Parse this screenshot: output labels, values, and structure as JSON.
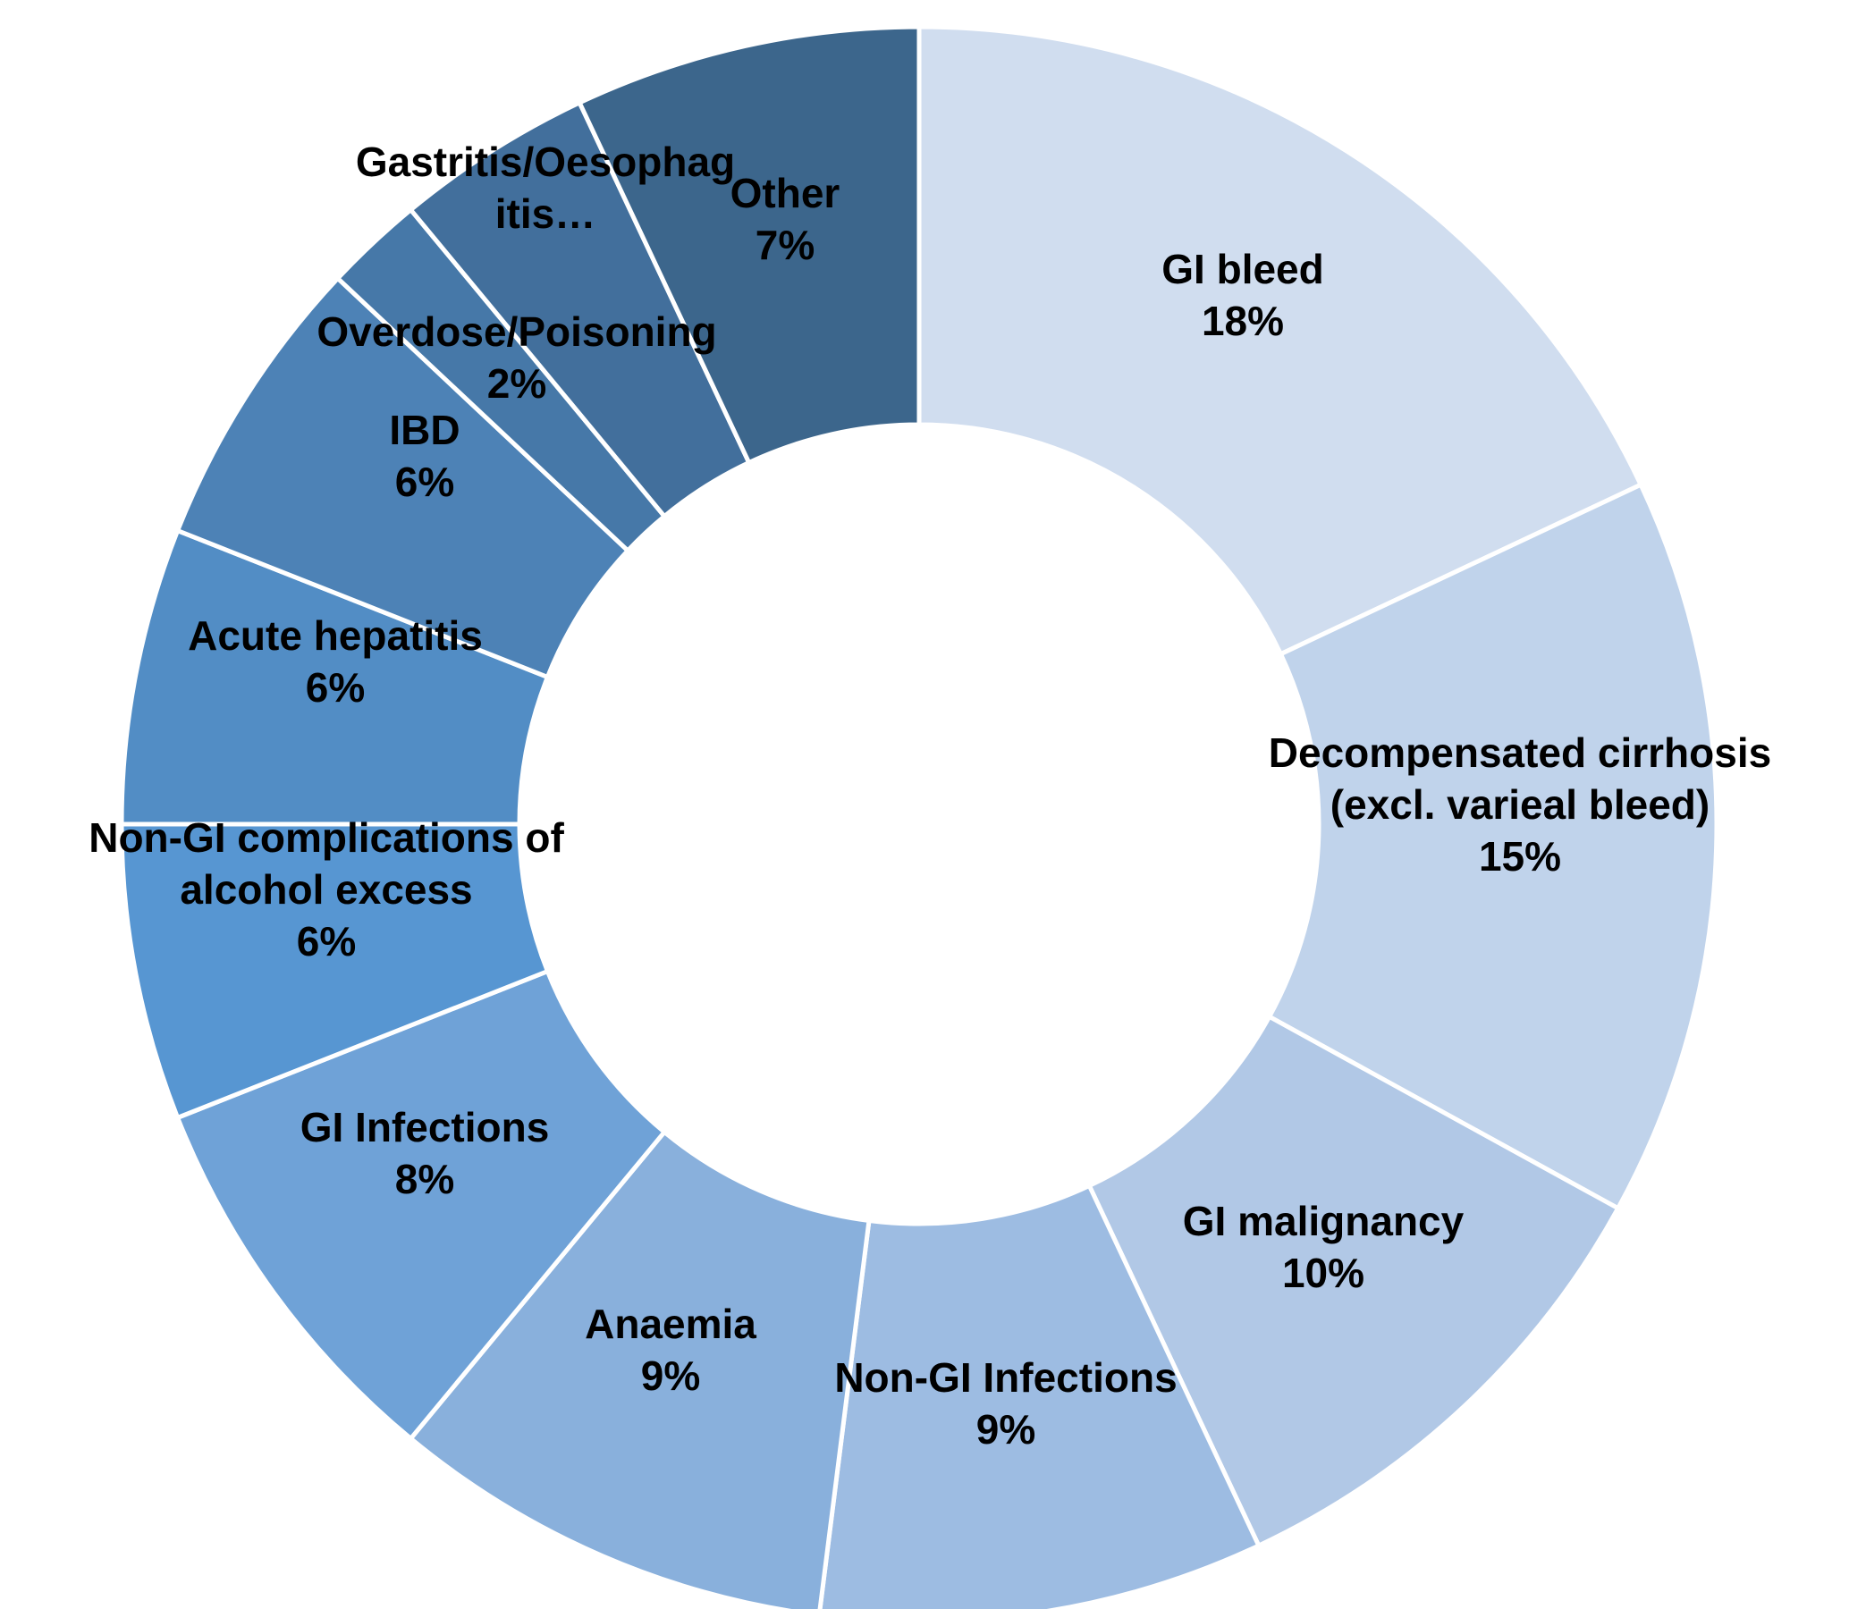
{
  "chart_data": {
    "type": "pie",
    "donut": true,
    "legend": "none",
    "slices": [
      {
        "label_lines": [
          "GI bleed"
        ],
        "value": 18,
        "value_label": "18%",
        "color": "#d0ddef"
      },
      {
        "label_lines": [
          "Decompensated cirrhosis",
          "(excl. varieal bleed)"
        ],
        "value": 15,
        "value_label": "15%",
        "color": "#c0d3eb"
      },
      {
        "label_lines": [
          "GI malignancy"
        ],
        "value": 10,
        "value_label": "10%",
        "color": "#b1c8e6"
      },
      {
        "label_lines": [
          "Non-GI Infections"
        ],
        "value": 9,
        "value_label": "9%",
        "color": "#9dbce2"
      },
      {
        "label_lines": [
          "Anaemia"
        ],
        "value": 9,
        "value_label": "9%",
        "color": "#89b0dc"
      },
      {
        "label_lines": [
          "GI Infections"
        ],
        "value": 8,
        "value_label": "8%",
        "color": "#6fa2d7"
      },
      {
        "label_lines": [
          "Non-GI complications of",
          "alcohol excess"
        ],
        "value": 6,
        "value_label": "6%",
        "color": "#5796d2"
      },
      {
        "label_lines": [
          "Acute hepatitis"
        ],
        "value": 6,
        "value_label": "6%",
        "color": "#528dc5"
      },
      {
        "label_lines": [
          "IBD"
        ],
        "value": 6,
        "value_label": "6%",
        "color": "#4d82b6"
      },
      {
        "label_lines": [
          "Overdose/Poisoning"
        ],
        "value": 2,
        "value_label": "2%",
        "color": "#4678a8"
      },
      {
        "label_lines": [
          "Gastritis/Oesophag",
          "itis…"
        ],
        "value": 4,
        "value_label": "",
        "color": "#426f9c"
      },
      {
        "label_lines": [
          "Other"
        ],
        "value": 7,
        "value_label": "7%",
        "color": "#3c668c"
      }
    ]
  }
}
